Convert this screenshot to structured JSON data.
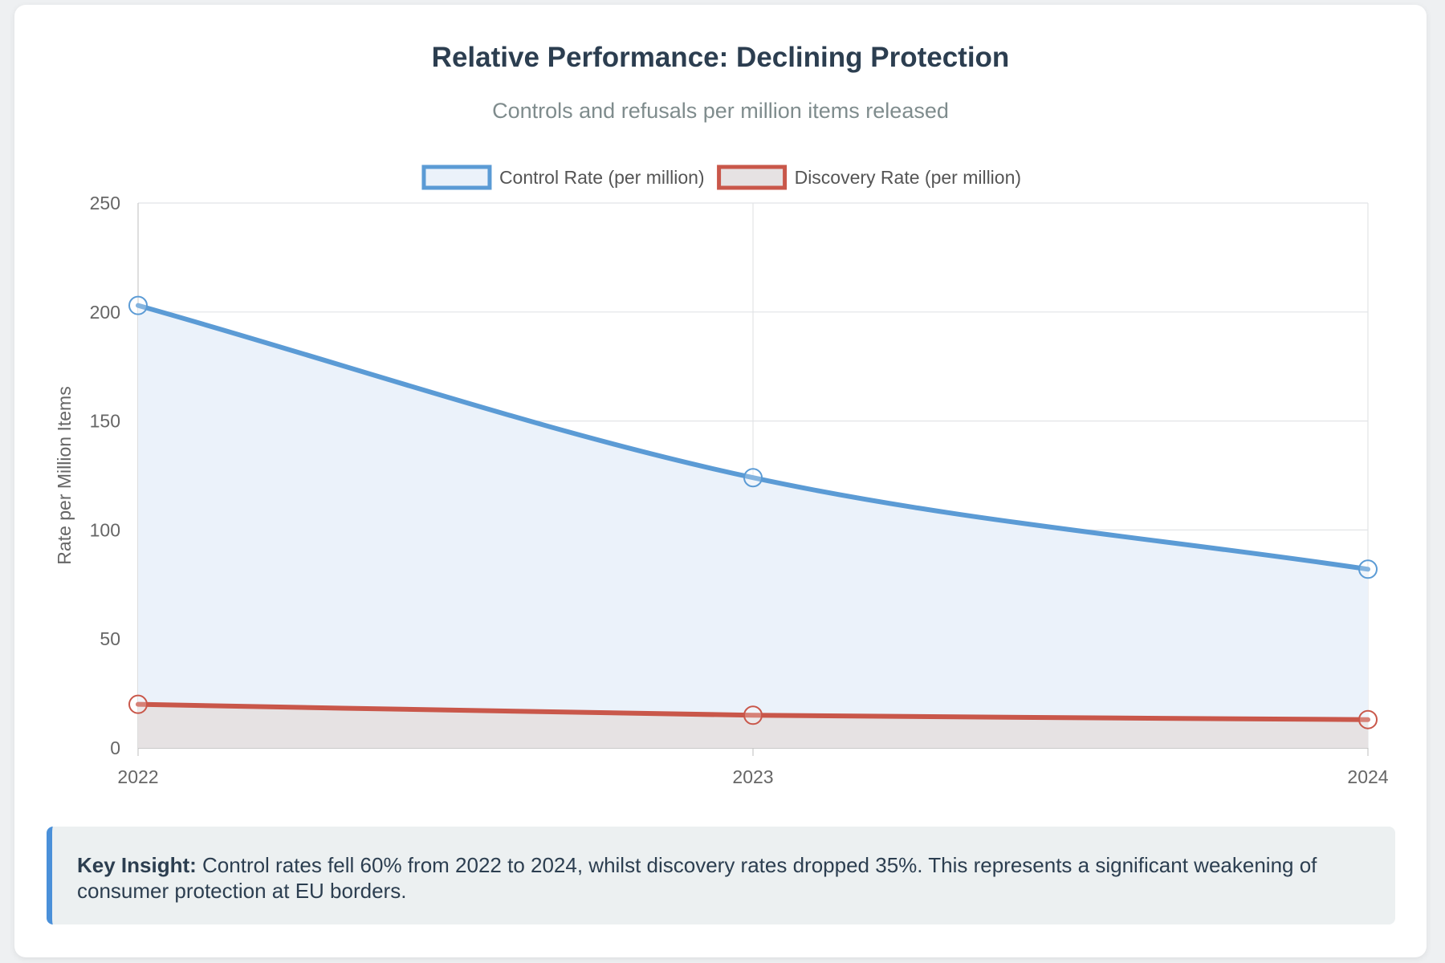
{
  "chart_data": {
    "type": "line",
    "title": "Relative Performance: Declining Protection",
    "subtitle": "Controls and refusals per million items released",
    "categories": [
      "2022",
      "2023",
      "2024"
    ],
    "xlabel": "",
    "ylabel": "Rate per Million Items",
    "ylim": [
      0,
      250
    ],
    "yticks": [
      0,
      50,
      100,
      150,
      200,
      250
    ],
    "grid": true,
    "legend_position": "top-center",
    "series": [
      {
        "name": "Control Rate (per million)",
        "values": [
          203,
          124,
          82
        ],
        "color": "#5b9bd5",
        "fill": "#ebf2fa",
        "filled": true
      },
      {
        "name": "Discovery Rate (per million)",
        "values": [
          20,
          15,
          13
        ],
        "color": "#c9574a",
        "fill": "#e6e2e3",
        "filled": true
      }
    ]
  },
  "insight": {
    "label": "Key Insight:",
    "text": " Control rates fell 60% from 2022 to 2024, whilst discovery rates dropped 35%. This represents a significant weakening of consumer protection at EU borders."
  }
}
